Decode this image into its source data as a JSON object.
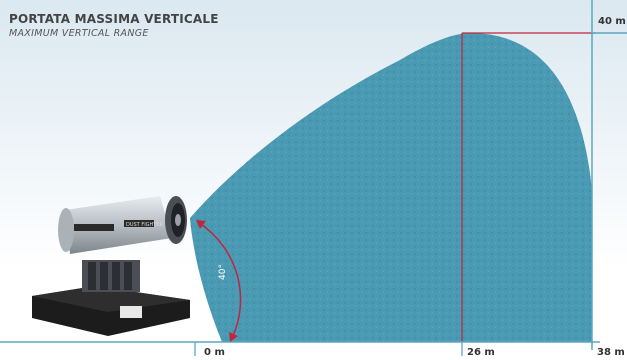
{
  "header": {
    "title": "PORTATA MASSIMA VERTICALE",
    "subtitle": "MAXIMUM VERTICAL RANGE"
  },
  "diagram": {
    "max_height_label": "40 m",
    "peak_distance_label": "26 m",
    "start_label": "0 m",
    "max_distance_label": "38 m",
    "angle_label": "40°",
    "machine_label": "DUST FIGHTER"
  },
  "colors": {
    "spray": "#4a9ab4",
    "spray_dots": "#3d8aa3",
    "sky_top": "#dbe8f0",
    "sky_bottom": "#ffffff",
    "axis": "#5aa8be",
    "peak_line": "#c0273c",
    "machine_base": "#1c1c1c",
    "machine_body": "#c9ced3"
  }
}
